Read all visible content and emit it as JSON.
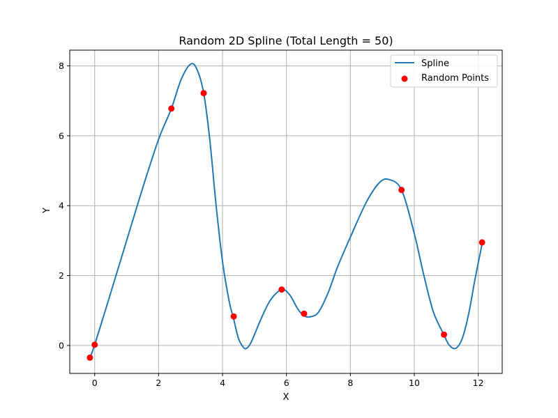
{
  "chart_data": {
    "type": "line",
    "title": "Random 2D Spline (Total Length = 50)",
    "xlabel": "X",
    "ylabel": "Y",
    "xlim": [
      -0.78,
      12.75
    ],
    "ylim": [
      -0.8,
      8.45
    ],
    "xticks": [
      0,
      2,
      4,
      6,
      8,
      10,
      12
    ],
    "yticks": [
      0,
      2,
      4,
      6,
      8
    ],
    "grid": true,
    "legend_position": "top-right",
    "series": [
      {
        "name": "Spline",
        "kind": "line",
        "color": "#1f77b4",
        "points": [
          [
            -0.15,
            -0.35
          ],
          [
            0.0,
            0.02
          ],
          [
            0.5,
            1.5
          ],
          [
            1.0,
            3.0
          ],
          [
            1.5,
            4.5
          ],
          [
            2.0,
            5.9
          ],
          [
            2.4,
            6.78
          ],
          [
            2.7,
            7.6
          ],
          [
            3.0,
            8.05
          ],
          [
            3.2,
            7.9
          ],
          [
            3.41,
            7.22
          ],
          [
            3.6,
            5.9
          ],
          [
            3.8,
            4.0
          ],
          [
            4.0,
            2.4
          ],
          [
            4.2,
            1.3
          ],
          [
            4.35,
            0.75
          ],
          [
            4.5,
            0.2
          ],
          [
            4.65,
            -0.05
          ],
          [
            4.75,
            -0.08
          ],
          [
            4.9,
            0.1
          ],
          [
            5.2,
            0.75
          ],
          [
            5.5,
            1.3
          ],
          [
            5.85,
            1.6
          ],
          [
            6.1,
            1.45
          ],
          [
            6.35,
            1.05
          ],
          [
            6.55,
            0.85
          ],
          [
            6.75,
            0.82
          ],
          [
            7.0,
            0.95
          ],
          [
            7.3,
            1.5
          ],
          [
            7.6,
            2.25
          ],
          [
            8.0,
            3.1
          ],
          [
            8.5,
            4.1
          ],
          [
            8.9,
            4.65
          ],
          [
            9.2,
            4.75
          ],
          [
            9.6,
            4.45
          ],
          [
            10.0,
            3.2
          ],
          [
            10.3,
            2.0
          ],
          [
            10.6,
            0.95
          ],
          [
            10.93,
            0.3
          ],
          [
            11.1,
            0.0
          ],
          [
            11.3,
            -0.08
          ],
          [
            11.5,
            0.2
          ],
          [
            11.7,
            0.9
          ],
          [
            11.9,
            1.9
          ],
          [
            12.12,
            2.9
          ]
        ]
      },
      {
        "name": "Random Points",
        "kind": "scatter",
        "color": "#ff0000",
        "points": [
          [
            -0.15,
            -0.35
          ],
          [
            0.0,
            0.02
          ],
          [
            2.4,
            6.78
          ],
          [
            3.41,
            7.22
          ],
          [
            4.35,
            0.83
          ],
          [
            5.85,
            1.6
          ],
          [
            6.55,
            0.91
          ],
          [
            9.6,
            4.45
          ],
          [
            10.93,
            0.31
          ],
          [
            12.12,
            2.95
          ]
        ]
      }
    ]
  }
}
